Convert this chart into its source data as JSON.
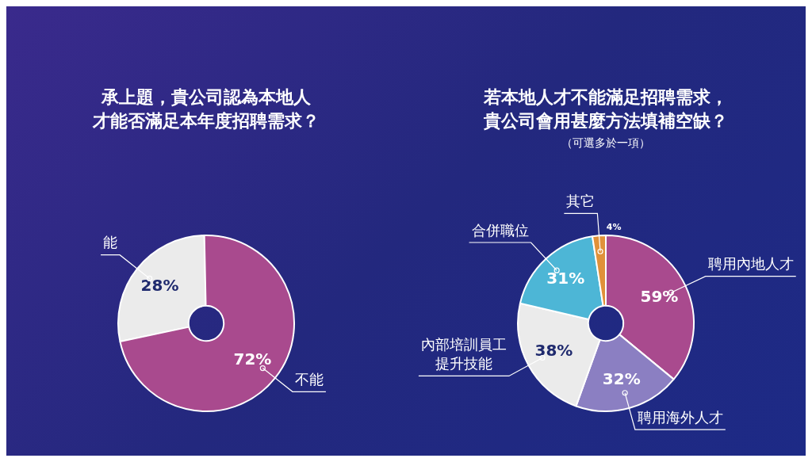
{
  "chart_data": [
    {
      "type": "donut",
      "title": "承上題，貴公司認為本地人才能否滿足本年度招聘需求？",
      "categories": [
        "能",
        "不能"
      ],
      "values": [
        28,
        72
      ],
      "colors": [
        "#ebebeb",
        "#a94a8e"
      ],
      "value_labels": [
        "28%",
        "72%"
      ]
    },
    {
      "type": "donut",
      "title": "若本地人才不能滿足招聘需求，貴公司會用甚麼方法填補空缺？",
      "subtitle": "（可選多於一項）",
      "categories": [
        "聘用內地人才",
        "聘用海外人才",
        "內部培訓員工提升技能",
        "合併職位",
        "其它"
      ],
      "values": [
        59,
        32,
        38,
        31,
        4
      ],
      "colors": [
        "#a94a8e",
        "#8b7fc2",
        "#ebebeb",
        "#4db6d6",
        "#e0913a"
      ],
      "value_labels": [
        "59%",
        "32%",
        "38%",
        "31%",
        "4%"
      ]
    }
  ]
}
